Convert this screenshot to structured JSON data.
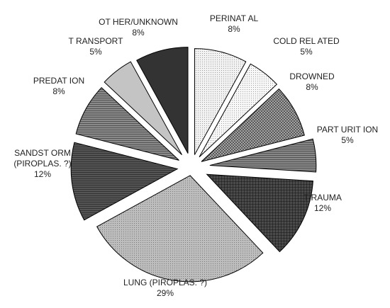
{
  "chart_data": {
    "type": "pie",
    "exploded": true,
    "slices": [
      {
        "label": "PERINATAL",
        "label_lines": [
          "PERINAT AL",
          "8%"
        ],
        "value": 8,
        "percent_label": "8%",
        "fill": "#f2f2f2",
        "pattern": "dots"
      },
      {
        "label": "COLD RELATED",
        "label_lines": [
          "COLD REL ATED",
          "5%"
        ],
        "value": 5,
        "percent_label": "5%",
        "fill": "#f7f7f7",
        "pattern": "dots"
      },
      {
        "label": "DROWNED",
        "label_lines": [
          "DROWNED",
          "8%"
        ],
        "value": 8,
        "percent_label": "8%",
        "fill": "#a3a3a3",
        "pattern": "checker"
      },
      {
        "label": "PARTURITION",
        "label_lines": [
          "PART URIT ION",
          "5%"
        ],
        "value": 5,
        "percent_label": "5%",
        "fill": "#888888",
        "pattern": "hlines"
      },
      {
        "label": "TRAUMA",
        "label_lines": [
          "T RAUMA",
          "12%"
        ],
        "value": 12,
        "percent_label": "12%",
        "fill": "#4a4a4a",
        "pattern": "cross"
      },
      {
        "label": "LUNG (PIROPLAS. ?)",
        "label_lines": [
          "LUNG (PIROPLAS. ?)",
          "29%"
        ],
        "value": 29,
        "percent_label": "29%",
        "fill": "#bdbdbd",
        "pattern": "dots"
      },
      {
        "label": "SANDSTORM (PIROPLAS. ?)",
        "label_lines": [
          "SANDST ORM",
          "(PIROPLAS. ?)",
          "12%"
        ],
        "value": 12,
        "percent_label": "12%",
        "fill": "#555555",
        "pattern": "hlines"
      },
      {
        "label": "PREDATION",
        "label_lines": [
          "PREDAT ION",
          "8%"
        ],
        "value": 8,
        "percent_label": "8%",
        "fill": "#8a8a8a",
        "pattern": "hlines"
      },
      {
        "label": "TRANSPORT",
        "label_lines": [
          "T RANSPORT",
          "5%"
        ],
        "value": 5,
        "percent_label": "5%",
        "fill": "#c4c4c4",
        "pattern": "none"
      },
      {
        "label": "OTHER/UNKNOWN",
        "label_lines": [
          "OT HER/UNKNOWN",
          "8%"
        ],
        "value": 8,
        "percent_label": "8%",
        "fill": "#333333",
        "pattern": "none"
      }
    ]
  }
}
